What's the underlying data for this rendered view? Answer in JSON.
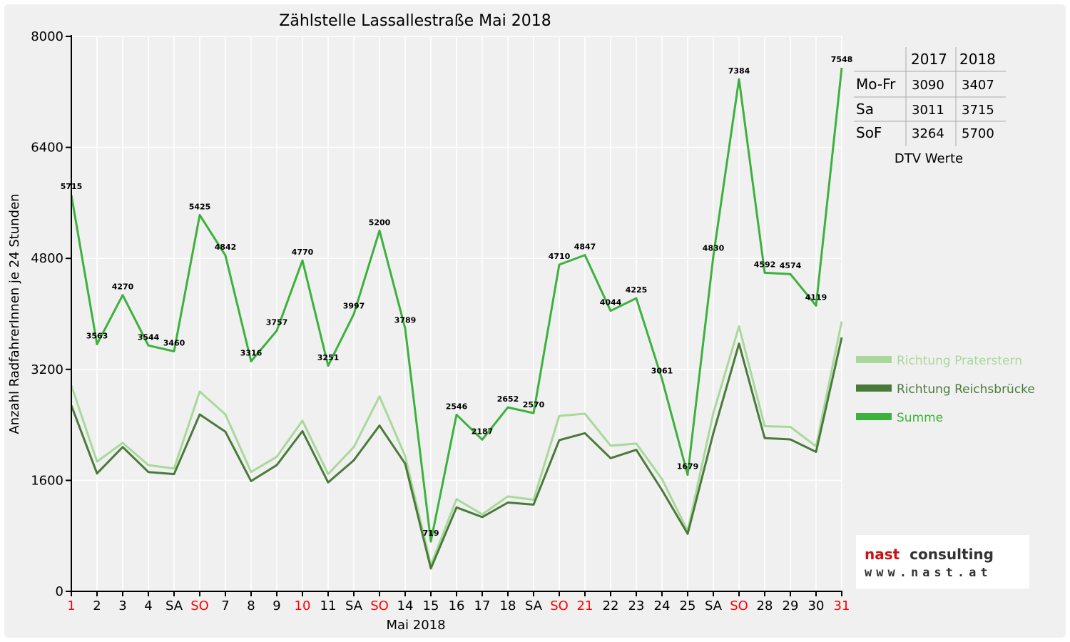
{
  "chart_data": {
    "type": "line",
    "title": "Zählstelle Lassallestraße Mai 2018",
    "xlabel": "Mai 2018",
    "ylabel": "Anzahl RadfahrerInnen je 24 Stunden",
    "ylim": [
      0,
      8000
    ],
    "yticks": [
      0,
      1600,
      3200,
      4800,
      6400,
      8000
    ],
    "grid": true,
    "legend_position": "right",
    "categories": [
      "1",
      "2",
      "3",
      "4",
      "SA",
      "SO",
      "7",
      "8",
      "9",
      "10",
      "11",
      "SA",
      "SO",
      "14",
      "15",
      "16",
      "17",
      "18",
      "SA",
      "SO",
      "21",
      "22",
      "23",
      "24",
      "25",
      "SA",
      "SO",
      "28",
      "29",
      "30",
      "31"
    ],
    "red_categories": [
      0,
      5,
      9,
      12,
      19,
      20,
      26,
      30
    ],
    "series": [
      {
        "name": "Richtung Praterstern",
        "color": "#a9d99a",
        "values": [
          2970,
          1870,
          2140,
          1820,
          1770,
          2880,
          2550,
          1720,
          1940,
          2460,
          1690,
          2080,
          2810,
          1950,
          380,
          1330,
          1110,
          1370,
          1320,
          2530,
          2560,
          2100,
          2130,
          1620,
          870,
          2570,
          3820,
          2380,
          2370,
          2090,
          3890
        ]
      },
      {
        "name": "Richtung Reichsbrücke",
        "color": "#4a7a3a",
        "values": [
          2680,
          1700,
          2080,
          1720,
          1690,
          2550,
          2300,
          1590,
          1820,
          2310,
          1570,
          1890,
          2390,
          1840,
          330,
          1210,
          1070,
          1280,
          1250,
          2180,
          2280,
          1920,
          2040,
          1460,
          830,
          2280,
          3570,
          2210,
          2190,
          2010,
          3660
        ]
      },
      {
        "name": "Summe",
        "color": "#3db13d",
        "values": [
          5715,
          3563,
          4270,
          3544,
          3460,
          5425,
          4842,
          3316,
          3757,
          4770,
          3251,
          3997,
          5200,
          3789,
          719,
          2546,
          2187,
          2652,
          2570,
          4710,
          4847,
          4044,
          4225,
          3061,
          1679,
          4830,
          7384,
          4592,
          4574,
          4119,
          7548
        ]
      }
    ],
    "data_labels": [
      "5715",
      "3563",
      "4270",
      "3544",
      "3460",
      "5425",
      "4842",
      "3316",
      "3757",
      "4770",
      "3251",
      "3997",
      "5200",
      "3789",
      "719",
      "2546",
      "2187",
      "2652",
      "2570",
      "4710",
      "4847",
      "4044",
      "4225",
      "3061",
      "1679",
      "4830",
      "7384",
      "4592",
      "4574",
      "4119",
      "7548"
    ]
  },
  "dtv_table": {
    "caption": "DTV Werte",
    "headers": [
      "",
      "2017",
      "2018"
    ],
    "rows": [
      [
        "Mo-Fr",
        "3090",
        "3407"
      ],
      [
        "Sa",
        "3011",
        "3715"
      ],
      [
        "SoF",
        "3264",
        "5700"
      ]
    ]
  },
  "logo": {
    "word1": "nast",
    "word2": "consulting",
    "url": "www.nast.at",
    "color1": "#cc1111",
    "color2": "#333333"
  },
  "colors": {
    "holiday": "#ff0000",
    "grid": "#ffffff",
    "background": "#f0f0f0"
  }
}
